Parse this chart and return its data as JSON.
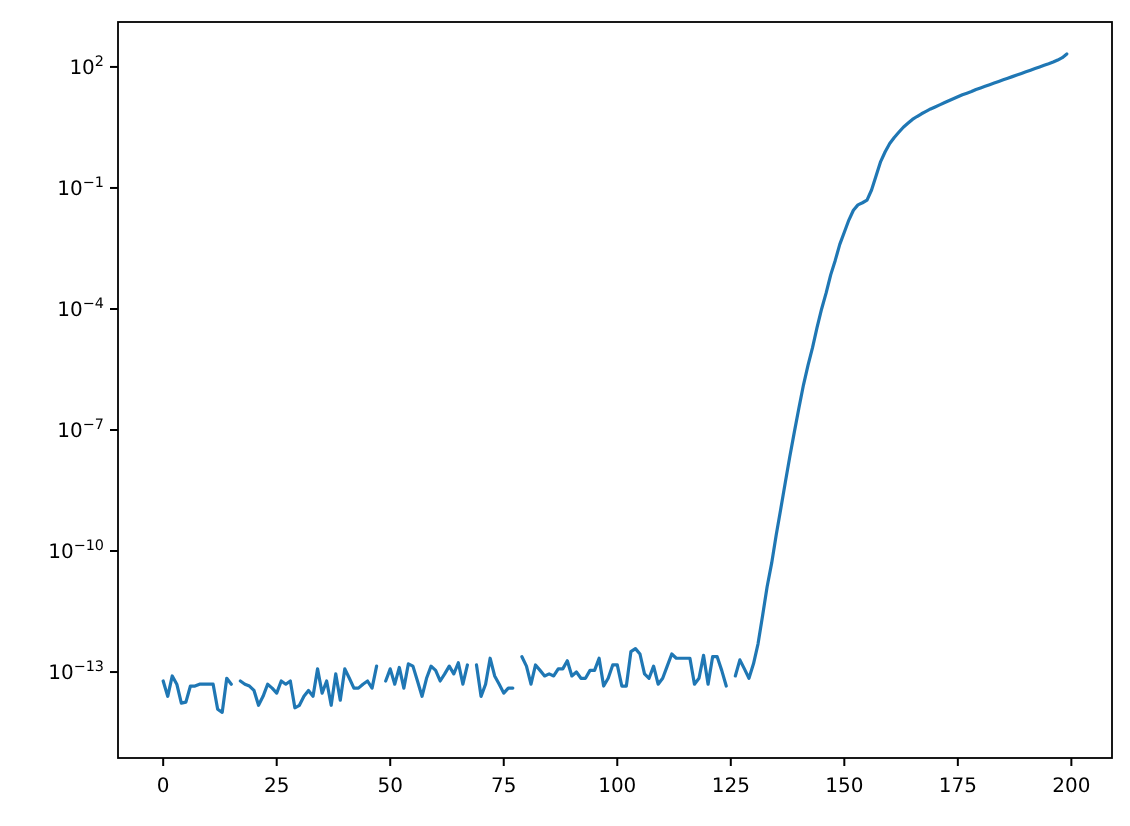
{
  "chart_data": {
    "type": "line",
    "log": "y",
    "x": [
      0,
      1,
      2,
      3,
      4,
      5,
      6,
      7,
      8,
      9,
      10,
      11,
      12,
      13,
      14,
      15,
      16,
      17,
      18,
      19,
      20,
      21,
      22,
      23,
      24,
      25,
      26,
      27,
      28,
      29,
      30,
      31,
      32,
      33,
      34,
      35,
      36,
      37,
      38,
      39,
      40,
      41,
      42,
      43,
      44,
      45,
      46,
      47,
      48,
      49,
      50,
      51,
      52,
      53,
      54,
      55,
      56,
      57,
      58,
      59,
      60,
      61,
      62,
      63,
      64,
      65,
      66,
      67,
      68,
      69,
      70,
      71,
      72,
      73,
      74,
      75,
      76,
      77,
      78,
      79,
      80,
      81,
      82,
      83,
      84,
      85,
      86,
      87,
      88,
      89,
      90,
      91,
      92,
      93,
      94,
      95,
      96,
      97,
      98,
      99,
      100,
      101,
      102,
      103,
      104,
      105,
      106,
      107,
      108,
      109,
      110,
      111,
      112,
      113,
      114,
      115,
      116,
      117,
      118,
      119,
      120,
      121,
      122,
      123,
      124,
      125,
      126,
      127,
      128,
      129,
      130,
      131,
      132,
      133,
      134,
      135,
      136,
      137,
      138,
      139,
      140,
      141,
      142,
      143,
      144,
      145,
      146,
      147,
      148,
      149,
      150,
      151,
      152,
      153,
      154,
      155,
      156,
      157,
      158,
      159,
      160,
      161,
      162,
      163,
      164,
      165,
      166,
      167,
      168,
      169,
      170,
      171,
      172,
      173,
      174,
      175,
      176,
      177,
      178,
      179,
      180,
      181,
      182,
      183,
      184,
      185,
      186,
      187,
      188,
      189,
      190,
      191,
      192,
      193,
      194,
      195,
      196,
      197,
      198,
      199
    ],
    "series": [
      {
        "color": "#1f77b4",
        "values": [
          6e-14,
          2.5e-14,
          8e-14,
          5e-14,
          1.7e-14,
          1.8e-14,
          4.5e-14,
          4.5e-14,
          5e-14,
          5e-14,
          5e-14,
          5e-14,
          1.2e-14,
          1e-14,
          7e-14,
          5e-14,
          null,
          6e-14,
          5e-14,
          4.5e-14,
          3.5e-14,
          1.5e-14,
          2.5e-14,
          5e-14,
          4e-14,
          3e-14,
          6e-14,
          5e-14,
          6e-14,
          1.3e-14,
          1.5e-14,
          2.5e-14,
          3.5e-14,
          2.5e-14,
          1.2e-13,
          3e-14,
          6e-14,
          1.5e-14,
          9e-14,
          2e-14,
          1.2e-13,
          7e-14,
          4e-14,
          4e-14,
          5e-14,
          6e-14,
          4e-14,
          1.4e-13,
          null,
          6e-14,
          1.2e-13,
          5e-14,
          1.3e-13,
          4e-14,
          1.6e-13,
          1.4e-13,
          6e-14,
          2.5e-14,
          7e-14,
          1.4e-13,
          1.1e-13,
          6e-14,
          9e-14,
          1.4e-13,
          9e-14,
          1.7e-13,
          5e-14,
          1.5e-13,
          null,
          1.5e-13,
          2.5e-14,
          5e-14,
          2.2e-13,
          8e-14,
          5e-14,
          3e-14,
          4e-14,
          4e-14,
          null,
          2.4e-13,
          1.4e-13,
          5e-14,
          1.5e-13,
          1.1e-13,
          8e-14,
          9e-14,
          8e-14,
          1.2e-13,
          1.2e-13,
          1.9e-13,
          8e-14,
          1e-13,
          7e-14,
          7e-14,
          1.1e-13,
          1.1e-13,
          2.2e-13,
          4.5e-14,
          7e-14,
          1.5e-13,
          1.5e-13,
          4.5e-14,
          4.5e-14,
          3.2e-13,
          3.8e-13,
          2.8e-13,
          9e-14,
          7e-14,
          1.4e-13,
          5e-14,
          7e-14,
          1.4e-13,
          2.8e-13,
          2.2e-13,
          2.2e-13,
          2.2e-13,
          2.2e-13,
          5e-14,
          7e-14,
          2.6e-13,
          5e-14,
          2.4e-13,
          2.4e-13,
          1.1e-13,
          4.5e-14,
          null,
          8e-14,
          2e-13,
          1.2e-13,
          7e-14,
          1.6e-13,
          5e-13,
          2.5e-12,
          1.3e-11,
          5e-11,
          2.5e-10,
          1.1e-09,
          5e-09,
          2.2e-08,
          9e-08,
          3.5e-07,
          1.3e-06,
          4e-06,
          1.1e-05,
          3.5e-05,
          0.0001,
          0.00025,
          0.0007,
          0.0016,
          0.004,
          0.008,
          0.016,
          0.028,
          0.038,
          0.043,
          0.05,
          0.089,
          0.2,
          0.45,
          0.79,
          1.26,
          1.78,
          2.4,
          3.2,
          4.0,
          5.0,
          5.9,
          6.9,
          7.9,
          9.1,
          10.2,
          11.5,
          12.9,
          14.5,
          16.2,
          18.2,
          20.4,
          22.4,
          24.5,
          27.5,
          30.2,
          33.1,
          36.3,
          39.8,
          43.7,
          47.9,
          52.5,
          57.5,
          63.1,
          69.2,
          75.9,
          83.2,
          91.2,
          100,
          110,
          120,
          132,
          148,
          170,
          209
        ]
      }
    ],
    "xlim": [
      -9.95,
      208.95
    ],
    "xticks": [
      0,
      25,
      50,
      75,
      100,
      125,
      150,
      175,
      200
    ],
    "ylim": [
      7.4e-16,
      1300
    ],
    "yticks": [
      {
        "value": 1e-13,
        "label": "10$^{−13}$"
      },
      {
        "value": 1e-10,
        "label": "10$^{−10}$"
      },
      {
        "value": 1e-07,
        "label": "10$^{−7}$"
      },
      {
        "value": 0.0001,
        "label": "10$^{−4}$"
      },
      {
        "value": 0.1,
        "label": "10$^{−1}$"
      },
      {
        "value": 100,
        "label": "10$^{2}$"
      }
    ]
  }
}
